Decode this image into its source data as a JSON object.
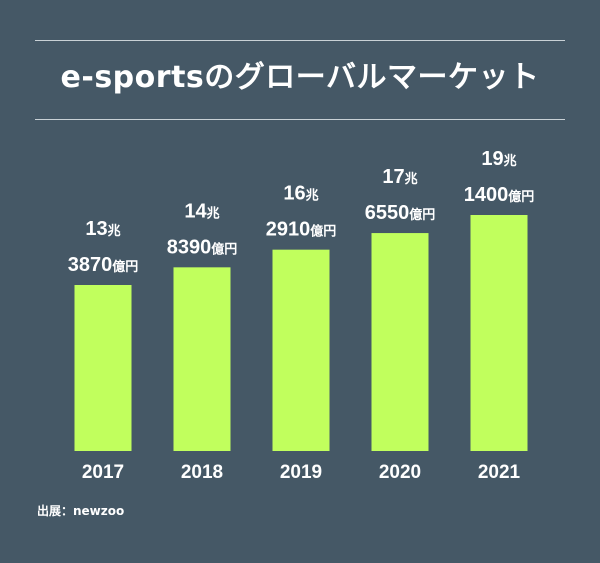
{
  "title": "e-sportsのグローバルマーケット",
  "source": "出展：newzoo",
  "colors": {
    "background": "#455866",
    "bar": "#c1ff5d",
    "text": "#ffffff",
    "rule": "#c9d1d6"
  },
  "chart_data": {
    "type": "bar",
    "title": "e-sportsのグローバルマーケット",
    "categories": [
      "2017",
      "2018",
      "2019",
      "2020",
      "2021"
    ],
    "values": [
      133870,
      148390,
      162910,
      176550,
      191400
    ],
    "unit": "億円",
    "value_labels": [
      {
        "line1_num": "13",
        "line1_unit": "兆",
        "line2_num": "3870",
        "line2_unit": "億円"
      },
      {
        "line1_num": "14",
        "line1_unit": "兆",
        "line2_num": "8390",
        "line2_unit": "億円"
      },
      {
        "line1_num": "16",
        "line1_unit": "兆",
        "line2_num": "2910",
        "line2_unit": "億円"
      },
      {
        "line1_num": "17",
        "line1_unit": "兆",
        "line2_num": "6550",
        "line2_unit": "億円"
      },
      {
        "line1_num": "19",
        "line1_unit": "兆",
        "line2_num": "1400",
        "line2_unit": "億円"
      }
    ],
    "xlabel": "",
    "ylabel": "",
    "grid": false,
    "legend": "none"
  }
}
